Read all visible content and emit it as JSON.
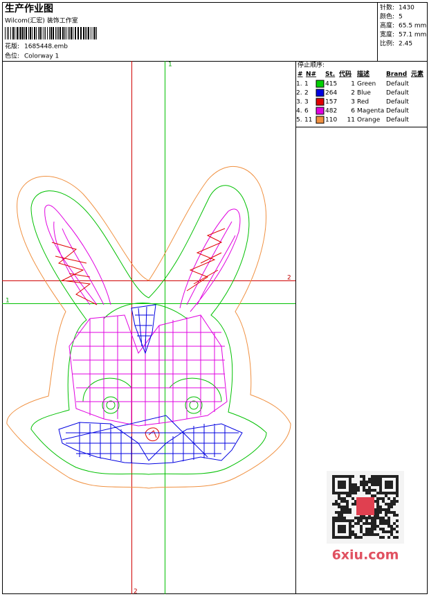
{
  "header": {
    "title": "生产作业图",
    "subtitle": "Wilcom(汇宏) 装饰工作室",
    "design_file": {
      "label": "花版:",
      "value": "1685448.emb"
    },
    "colorway": {
      "label": "色位:",
      "value": "Colorway 1"
    }
  },
  "specs": [
    {
      "label": "针数:",
      "value": "1430"
    },
    {
      "label": "颜色:",
      "value": "5"
    },
    {
      "label": "高度:",
      "value": "65.5 mm"
    },
    {
      "label": "宽度:",
      "value": "57.1 mm"
    },
    {
      "label": "比例:",
      "value": "2.45"
    }
  ],
  "stop_sequence": {
    "title": "停止顺序:",
    "columns": [
      "#",
      "N#",
      "St.",
      "代码",
      "描述",
      "Brand",
      "元素"
    ],
    "rows": [
      {
        "num": "1.",
        "needle": "1",
        "color": "#00d000",
        "stitches": "415",
        "code": "1",
        "description": "Green",
        "brand": "Default"
      },
      {
        "num": "2.",
        "needle": "2",
        "color": "#0000e0",
        "stitches": "264",
        "code": "2",
        "description": "Blue",
        "brand": "Default"
      },
      {
        "num": "3.",
        "needle": "3",
        "color": "#e00000",
        "stitches": "157",
        "code": "3",
        "description": "Red",
        "brand": "Default"
      },
      {
        "num": "4.",
        "needle": "6",
        "color": "#e000e0",
        "stitches": "482",
        "code": "6",
        "description": "Magenta",
        "brand": "Default"
      },
      {
        "num": "5.",
        "needle": "11",
        "color": "#f09040",
        "stitches": "110",
        "code": "11",
        "description": "Orange",
        "brand": "Default"
      }
    ]
  },
  "guides": {
    "green_vertical": "1",
    "red_horizontal": "2",
    "green_horizontal": "1",
    "red_vertical": "2"
  },
  "watermark": "6xiu.com"
}
